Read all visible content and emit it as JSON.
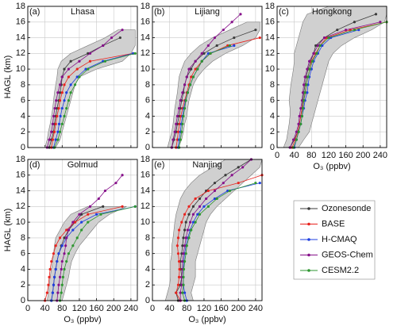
{
  "chart_data": [
    {
      "type": "line",
      "label": "(a)",
      "title": "Lhasa",
      "ylabel": "HAGL (km)",
      "xticklabels": false,
      "xlim": [
        0,
        255
      ],
      "ylim": [
        0,
        18
      ],
      "xticks": [
        0,
        40,
        80,
        120,
        160,
        200,
        240
      ],
      "yticks": [
        0,
        2,
        4,
        6,
        8,
        10,
        12,
        14,
        16,
        18
      ],
      "grid": true,
      "legend": true,
      "y": [
        0,
        1,
        2,
        3,
        4,
        5,
        6,
        7,
        8,
        9,
        10,
        11,
        12,
        13,
        14,
        15,
        16,
        17,
        18
      ],
      "range": {
        "color": "#d0d0d0",
        "low": [
          40,
          45,
          48,
          52,
          55,
          58,
          60,
          62,
          65,
          68,
          70,
          78,
          100,
          140,
          180,
          210,
          null,
          null,
          null
        ],
        "high": [
          65,
          75,
          80,
          85,
          90,
          95,
          100,
          105,
          110,
          120,
          160,
          220,
          240,
          250,
          250,
          250,
          null,
          null,
          null
        ]
      },
      "series": [
        {
          "name": "Ozonesonde",
          "color": "#3a3a3a",
          "values": [
            50,
            55,
            60,
            62,
            65,
            68,
            72,
            75,
            78,
            80,
            85,
            100,
            140,
            175,
            215,
            null,
            null,
            null,
            null
          ]
        },
        {
          "name": "BASE",
          "color": "#e8231e",
          "values": [
            55,
            58,
            62,
            65,
            68,
            72,
            75,
            80,
            85,
            95,
            115,
            145,
            245,
            null,
            null,
            null,
            null,
            null,
            null
          ]
        },
        {
          "name": "H-CMAQ",
          "color": "#1f3fe0",
          "values": [
            60,
            65,
            70,
            73,
            76,
            80,
            85,
            90,
            100,
            115,
            135,
            175,
            245,
            null,
            null,
            null,
            null,
            null,
            null
          ]
        },
        {
          "name": "GEOS-Chem",
          "color": "#86108a",
          "values": [
            45,
            50,
            55,
            58,
            60,
            63,
            66,
            70,
            75,
            80,
            95,
            120,
            145,
            175,
            195,
            220,
            null,
            null,
            null
          ]
        },
        {
          "name": "CESM2.2",
          "color": "#2e9630",
          "values": [
            62,
            70,
            75,
            80,
            85,
            90,
            95,
            100,
            110,
            120,
            140,
            180,
            250,
            null,
            null,
            null,
            null,
            null,
            null
          ]
        }
      ]
    },
    {
      "type": "line",
      "label": "(b)",
      "title": "Lijiang",
      "xticklabels": false,
      "xlim": [
        0,
        255
      ],
      "ylim": [
        0,
        18
      ],
      "xticks": [
        0,
        40,
        80,
        120,
        160,
        200,
        240
      ],
      "yticks": [
        0,
        2,
        4,
        6,
        8,
        10,
        12,
        14,
        16,
        18
      ],
      "grid": true,
      "y": [
        0,
        1,
        2,
        3,
        4,
        5,
        6,
        7,
        8,
        9,
        10,
        11,
        12,
        13,
        14,
        15,
        16,
        17,
        18
      ],
      "range": {
        "color": "#d0d0d0",
        "low": [
          35,
          40,
          45,
          48,
          50,
          52,
          55,
          58,
          60,
          62,
          68,
          75,
          90,
          110,
          140,
          180,
          220,
          null,
          null
        ],
        "high": [
          60,
          68,
          72,
          75,
          80,
          82,
          85,
          90,
          95,
          105,
          120,
          140,
          170,
          210,
          240,
          250,
          250,
          null,
          null
        ]
      },
      "series": [
        {
          "color": "#3a3a3a",
          "values": [
            45,
            50,
            55,
            58,
            62,
            65,
            68,
            72,
            75,
            80,
            90,
            100,
            120,
            150,
            190,
            240,
            null,
            null,
            null
          ]
        },
        {
          "color": "#e8231e",
          "values": [
            55,
            58,
            60,
            63,
            66,
            70,
            75,
            80,
            85,
            90,
            100,
            115,
            135,
            175,
            250,
            null,
            null,
            null,
            null
          ]
        },
        {
          "color": "#1f3fe0",
          "values": [
            60,
            62,
            65,
            67,
            70,
            73,
            77,
            82,
            88,
            95,
            105,
            115,
            130,
            190,
            null,
            null,
            null,
            null,
            null
          ]
        },
        {
          "color": "#86108a",
          "values": [
            45,
            48,
            52,
            55,
            58,
            62,
            65,
            70,
            75,
            80,
            85,
            100,
            115,
            130,
            145,
            165,
            185,
            205,
            null
          ]
        },
        {
          "color": "#2e9630",
          "values": [
            62,
            65,
            68,
            70,
            72,
            75,
            78,
            82,
            88,
            95,
            105,
            115,
            135,
            180,
            null,
            null,
            null,
            null,
            null
          ]
        }
      ]
    },
    {
      "type": "line",
      "label": "(c)",
      "title": "Hongkong",
      "xlabel": "O₃ (ppbv)",
      "xticklabels": true,
      "xlim": [
        0,
        255
      ],
      "ylim": [
        0,
        18
      ],
      "xticks": [
        0,
        40,
        80,
        120,
        160,
        200,
        240
      ],
      "yticks": [
        0,
        2,
        4,
        6,
        8,
        10,
        12,
        14,
        16,
        18
      ],
      "grid": true,
      "y": [
        0,
        1,
        2,
        3,
        4,
        5,
        6,
        7,
        8,
        9,
        10,
        11,
        12,
        13,
        14,
        15,
        16,
        17,
        18
      ],
      "range": {
        "color": "#d0d0d0",
        "low": [
          15,
          22,
          25,
          28,
          30,
          30,
          28,
          30,
          32,
          35,
          38,
          40,
          40,
          45,
          50,
          55,
          60,
          70,
          120
        ],
        "high": [
          50,
          62,
          75,
          80,
          85,
          90,
          95,
          100,
          105,
          110,
          115,
          120,
          130,
          150,
          180,
          220,
          250,
          255,
          255
        ]
      },
      "series": [
        {
          "color": "#3a3a3a",
          "values": [
            30,
            40,
            48,
            52,
            55,
            58,
            60,
            62,
            65,
            68,
            72,
            78,
            85,
            90,
            110,
            140,
            180,
            230,
            null
          ]
        },
        {
          "color": "#e8231e",
          "values": [
            35,
            42,
            48,
            52,
            55,
            58,
            62,
            66,
            68,
            72,
            76,
            80,
            90,
            100,
            115,
            170,
            255,
            null,
            null
          ]
        },
        {
          "color": "#1f3fe0",
          "values": [
            40,
            45,
            50,
            55,
            58,
            62,
            65,
            70,
            72,
            75,
            80,
            85,
            95,
            105,
            125,
            190,
            null,
            null,
            null
          ]
        },
        {
          "color": "#86108a",
          "values": [
            30,
            38,
            45,
            50,
            52,
            55,
            58,
            60,
            62,
            65,
            70,
            75,
            85,
            95,
            110,
            160,
            240,
            null,
            null
          ]
        },
        {
          "color": "#2e9630",
          "values": [
            38,
            45,
            50,
            55,
            58,
            60,
            62,
            65,
            68,
            72,
            76,
            82,
            92,
            100,
            120,
            180,
            255,
            null,
            null
          ]
        }
      ]
    },
    {
      "type": "line",
      "label": "(d)",
      "title": "Golmud",
      "ylabel": "HAGL (km)",
      "xlabel": "O₃ (ppbv)",
      "xticklabels": true,
      "xlim": [
        0,
        255
      ],
      "ylim": [
        0,
        18
      ],
      "xticks": [
        0,
        40,
        80,
        120,
        160,
        200,
        240
      ],
      "yticks": [
        0,
        2,
        4,
        6,
        8,
        10,
        12,
        14,
        16,
        18
      ],
      "grid": true,
      "y": [
        0,
        1,
        2,
        3,
        4,
        5,
        6,
        7,
        8,
        9,
        10,
        11,
        12,
        13,
        14,
        15,
        16,
        17,
        18
      ],
      "range": {
        "color": "#d0d0d0",
        "low": [
          45,
          48,
          50,
          52,
          55,
          58,
          60,
          62,
          65,
          75,
          85,
          100,
          140,
          null,
          null,
          null,
          null,
          null,
          null
        ],
        "high": [
          80,
          85,
          90,
          95,
          98,
          102,
          110,
          120,
          135,
          150,
          165,
          190,
          230,
          null,
          null,
          null,
          null,
          null,
          null
        ]
      },
      "series": [
        {
          "color": "#3a3a3a",
          "values": [
            55,
            58,
            60,
            62,
            65,
            68,
            72,
            78,
            85,
            95,
            110,
            125,
            175,
            null,
            null,
            null,
            null,
            null,
            null
          ]
        },
        {
          "color": "#e8231e",
          "values": [
            40,
            45,
            48,
            50,
            52,
            55,
            60,
            65,
            75,
            90,
            110,
            140,
            220,
            null,
            null,
            null,
            null,
            null,
            null
          ]
        },
        {
          "color": "#1f3fe0",
          "values": [
            55,
            58,
            60,
            62,
            65,
            68,
            72,
            80,
            90,
            105,
            125,
            160,
            250,
            null,
            null,
            null,
            null,
            null,
            null
          ]
        },
        {
          "color": "#86108a",
          "values": [
            68,
            70,
            72,
            75,
            78,
            80,
            85,
            88,
            90,
            95,
            105,
            120,
            145,
            165,
            180,
            205,
            220,
            null,
            null
          ]
        },
        {
          "color": "#2e9630",
          "values": [
            75,
            78,
            80,
            82,
            85,
            90,
            95,
            105,
            115,
            125,
            140,
            170,
            250,
            null,
            null,
            null,
            null,
            null,
            null
          ]
        }
      ]
    },
    {
      "type": "line",
      "label": "(e)",
      "title": "Nanjing",
      "xlabel": "O₃ (ppbv)",
      "xticklabels": true,
      "xlim": [
        0,
        255
      ],
      "ylim": [
        0,
        18
      ],
      "xticks": [
        0,
        40,
        80,
        120,
        160,
        200,
        240
      ],
      "yticks": [
        0,
        2,
        4,
        6,
        8,
        10,
        12,
        14,
        16,
        18
      ],
      "grid": true,
      "y": [
        0,
        1,
        2,
        3,
        4,
        5,
        6,
        7,
        8,
        9,
        10,
        11,
        12,
        13,
        14,
        15,
        16,
        17,
        18
      ],
      "range": {
        "color": "#d0d0d0",
        "low": [
          30,
          35,
          40,
          42,
          42,
          42,
          45,
          45,
          48,
          50,
          52,
          55,
          60,
          65,
          75,
          90,
          110,
          140,
          170
        ],
        "high": [
          95,
          90,
          95,
          100,
          100,
          100,
          105,
          110,
          115,
          120,
          125,
          135,
          150,
          170,
          190,
          210,
          230,
          250,
          255
        ]
      },
      "series": [
        {
          "color": "#3a3a3a",
          "values": [
            60,
            55,
            65,
            68,
            66,
            65,
            68,
            70,
            72,
            75,
            78,
            85,
            95,
            110,
            125,
            145,
            170,
            200,
            230
          ]
        },
        {
          "color": "#e8231e",
          "values": [
            65,
            55,
            60,
            62,
            63,
            62,
            60,
            58,
            60,
            62,
            68,
            75,
            85,
            100,
            130,
            200,
            255,
            null,
            null
          ]
        },
        {
          "color": "#1f3fe0",
          "values": [
            80,
            75,
            72,
            72,
            72,
            73,
            75,
            78,
            82,
            88,
            95,
            105,
            120,
            145,
            175,
            250,
            null,
            null,
            null
          ]
        },
        {
          "color": "#86108a",
          "values": [
            65,
            65,
            68,
            68,
            70,
            70,
            72,
            75,
            78,
            82,
            88,
            95,
            110,
            125,
            145,
            165,
            185,
            210,
            230
          ]
        },
        {
          "color": "#2e9630",
          "values": [
            75,
            70,
            72,
            72,
            73,
            75,
            78,
            80,
            85,
            90,
            100,
            110,
            130,
            150,
            180,
            240,
            null,
            null,
            null
          ]
        }
      ]
    }
  ]
}
